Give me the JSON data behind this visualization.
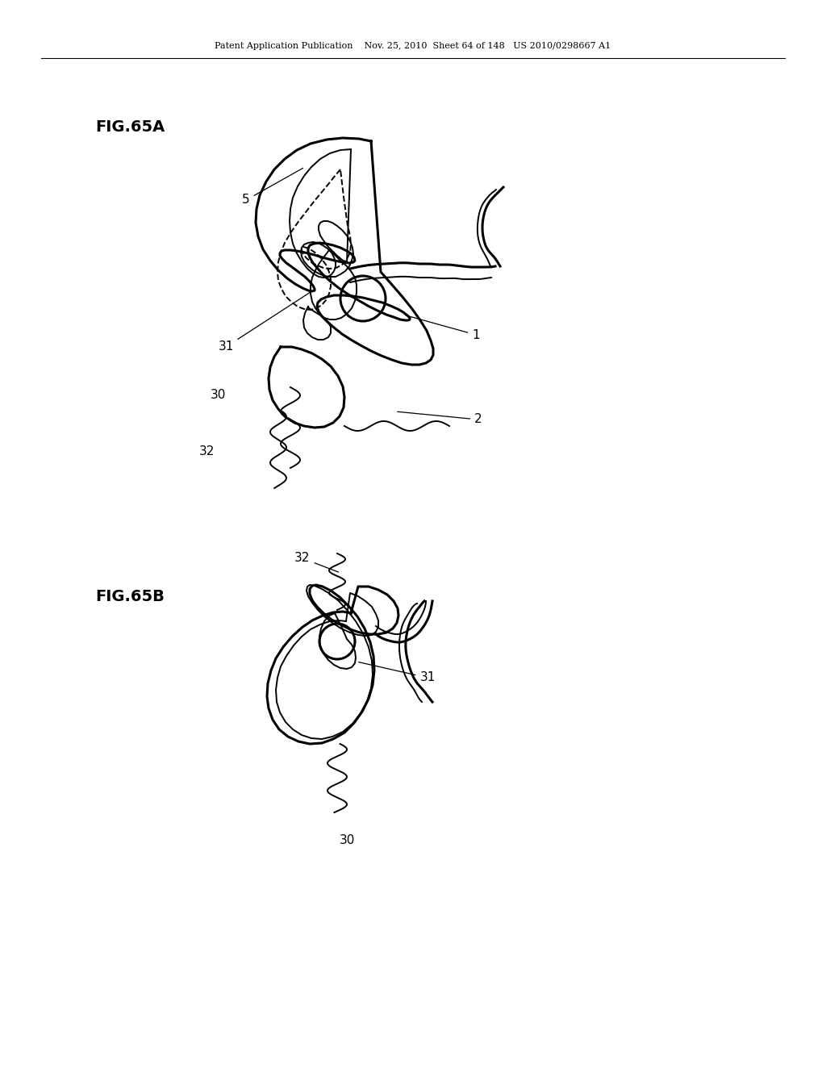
{
  "fig_width": 10.24,
  "fig_height": 13.2,
  "dpi": 100,
  "bg_color": "#ffffff",
  "line_color": "#000000",
  "header_text": "Patent Application Publication    Nov. 25, 2010  Sheet 64 of 148   US 2010/0298667 A1",
  "fig65a_label": "FIG.65A",
  "fig65b_label": "FIG.65B",
  "lw_thin": 1.4,
  "lw_thick": 2.2,
  "lw_medium": 1.7,
  "fontsize_label": 11,
  "fontsize_header": 8
}
